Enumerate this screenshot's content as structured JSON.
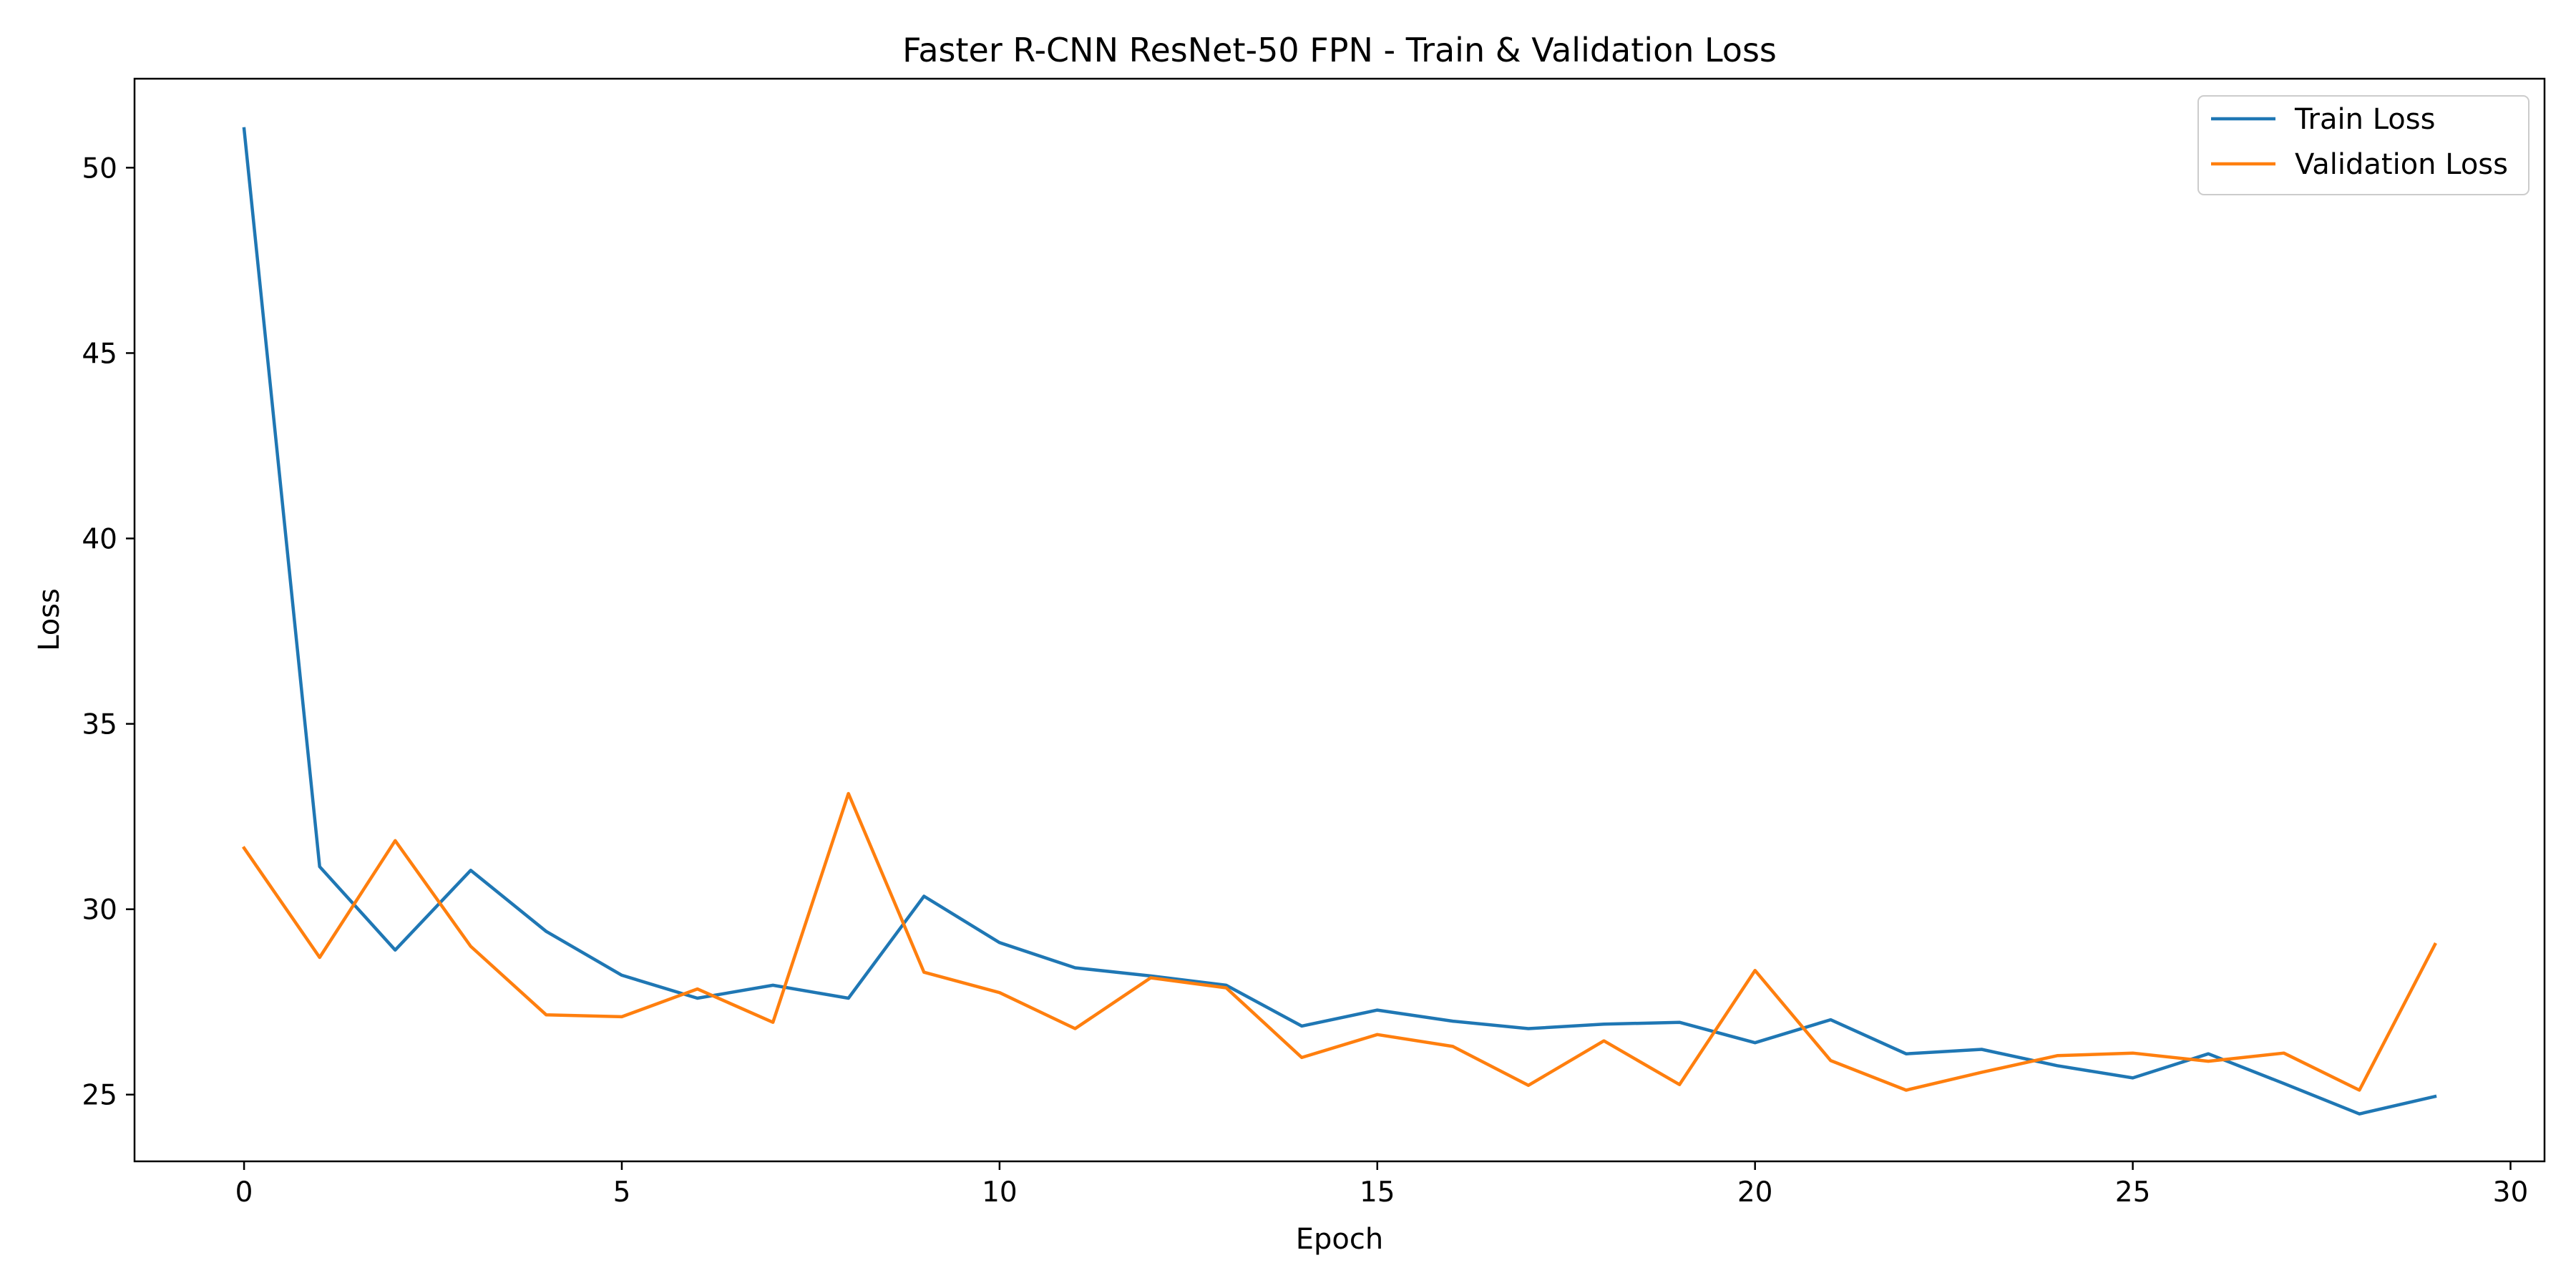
{
  "chart_data": {
    "type": "line",
    "title": "Faster R-CNN ResNet-50 FPN - Train & Validation Loss",
    "xlabel": "Epoch",
    "ylabel": "Loss",
    "xlim": [
      -1.45,
      30.45
    ],
    "ylim": [
      23.2,
      52.4
    ],
    "xticks": [
      0,
      5,
      10,
      15,
      20,
      25,
      30
    ],
    "yticks": [
      25,
      30,
      35,
      40,
      45,
      50
    ],
    "grid": false,
    "legend_position": "top-right",
    "x": [
      0,
      1,
      2,
      3,
      4,
      5,
      6,
      7,
      8,
      9,
      10,
      11,
      12,
      13,
      14,
      15,
      16,
      17,
      18,
      19,
      20,
      21,
      22,
      23,
      24,
      25,
      26,
      27,
      28,
      29
    ],
    "series": [
      {
        "name": "Train Loss",
        "color": "#1f77b4",
        "values": [
          51.05,
          31.15,
          28.9,
          31.05,
          29.4,
          28.22,
          27.6,
          27.95,
          27.6,
          30.35,
          29.1,
          28.42,
          28.2,
          27.95,
          26.85,
          27.28,
          26.98,
          26.78,
          26.9,
          26.95,
          26.4,
          27.02,
          26.1,
          26.22,
          25.78,
          25.45,
          26.1,
          25.3,
          24.48,
          24.95
        ]
      },
      {
        "name": "Validation Loss",
        "color": "#ff7f0e",
        "values": [
          31.65,
          28.7,
          31.85,
          29.0,
          27.15,
          27.1,
          27.85,
          26.95,
          33.12,
          28.3,
          27.75,
          26.78,
          28.15,
          27.88,
          26.0,
          26.62,
          26.3,
          25.25,
          26.45,
          25.27,
          28.35,
          25.92,
          25.12,
          25.6,
          26.05,
          26.12,
          25.9,
          26.12,
          25.12,
          29.05
        ]
      }
    ]
  }
}
